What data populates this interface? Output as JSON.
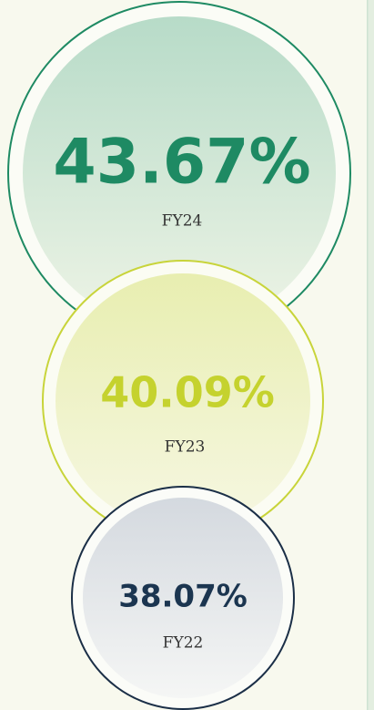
{
  "circles": [
    {
      "value": "43.67%",
      "label": "FY24"
    },
    {
      "value": "40.09%",
      "label": "FY23"
    },
    {
      "value": "38.07%",
      "label": "FY22"
    }
  ]
}
